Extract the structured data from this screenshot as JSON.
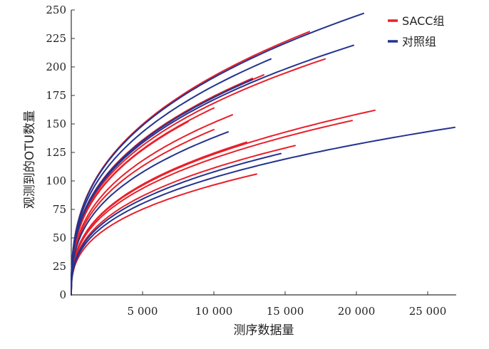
{
  "chart_data": {
    "type": "line",
    "title": "",
    "xlabel": "测序数据量",
    "ylabel": "观测到的OTU数量",
    "xlim": [
      0,
      27000
    ],
    "ylim": [
      0,
      250
    ],
    "xticks": [
      5000,
      10000,
      15000,
      20000,
      25000
    ],
    "xtick_labels": [
      "5 000",
      "10 000",
      "15 000",
      "20 000",
      "25 000"
    ],
    "yticks": [
      0,
      25,
      50,
      75,
      100,
      125,
      150,
      175,
      200,
      225,
      250
    ],
    "ytick_labels": [
      "0",
      "25",
      "50",
      "75",
      "100",
      "125",
      "150",
      "175",
      "200",
      "225",
      "250"
    ],
    "grid": false,
    "legend_position": "top-right",
    "colors": {
      "SACC组": "#e8202a",
      "对照组": "#23338f"
    },
    "legend": [
      {
        "label": "SACC组",
        "color": "#e8202a"
      },
      {
        "label": "对照组",
        "color": "#23338f"
      }
    ],
    "series": [
      {
        "group": "SACC组",
        "color": "#e8202a",
        "max_x": 16700,
        "final_y": 231
      },
      {
        "group": "SACC组",
        "color": "#e8202a",
        "max_x": 17800,
        "final_y": 207
      },
      {
        "group": "SACC组",
        "color": "#e8202a",
        "max_x": 13500,
        "final_y": 193
      },
      {
        "group": "SACC组",
        "color": "#e8202a",
        "max_x": 12700,
        "final_y": 190
      },
      {
        "group": "SACC组",
        "color": "#e8202a",
        "max_x": 10000,
        "final_y": 164
      },
      {
        "group": "SACC组",
        "color": "#e8202a",
        "max_x": 21300,
        "final_y": 162
      },
      {
        "group": "SACC组",
        "color": "#e8202a",
        "max_x": 11300,
        "final_y": 158
      },
      {
        "group": "SACC组",
        "color": "#e8202a",
        "max_x": 19700,
        "final_y": 153
      },
      {
        "group": "SACC组",
        "color": "#e8202a",
        "max_x": 8200,
        "final_y": 152
      },
      {
        "group": "SACC组",
        "color": "#e8202a",
        "max_x": 10000,
        "final_y": 145
      },
      {
        "group": "SACC组",
        "color": "#e8202a",
        "max_x": 12300,
        "final_y": 134
      },
      {
        "group": "SACC组",
        "color": "#e8202a",
        "max_x": 15700,
        "final_y": 131
      },
      {
        "group": "SACC组",
        "color": "#e8202a",
        "max_x": 13000,
        "final_y": 106
      },
      {
        "group": "对照组",
        "color": "#23338f",
        "max_x": 20500,
        "final_y": 247
      },
      {
        "group": "对照组",
        "color": "#23338f",
        "max_x": 19800,
        "final_y": 219
      },
      {
        "group": "对照组",
        "color": "#23338f",
        "max_x": 14000,
        "final_y": 207
      },
      {
        "group": "对照组",
        "color": "#23338f",
        "max_x": 12700,
        "final_y": 189
      },
      {
        "group": "对照组",
        "color": "#23338f",
        "max_x": 26900,
        "final_y": 147
      },
      {
        "group": "对照组",
        "color": "#23338f",
        "max_x": 11000,
        "final_y": 143
      },
      {
        "group": "对照组",
        "color": "#23338f",
        "max_x": 14700,
        "final_y": 124
      }
    ]
  }
}
